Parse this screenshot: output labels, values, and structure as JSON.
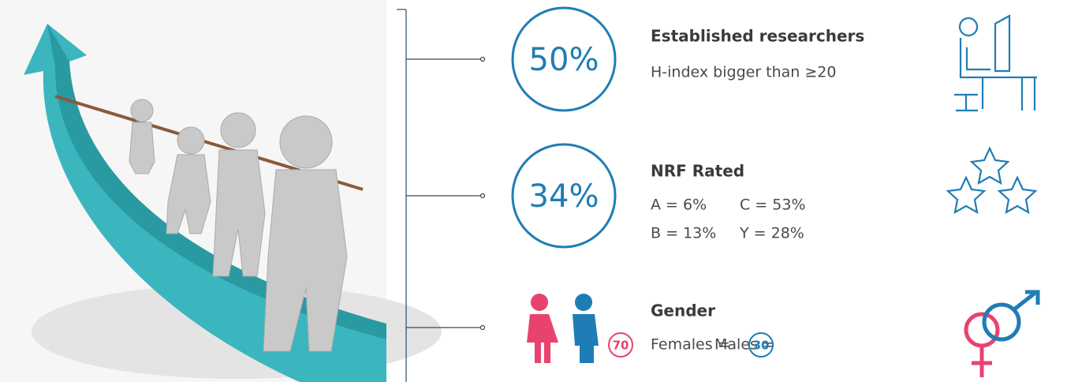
{
  "stats": [
    {
      "value": "50%",
      "title": "Established researchers",
      "line": "H-index bigger than ≥20"
    },
    {
      "value": "34%",
      "title": "NRF Rated",
      "grades": [
        "A = 6%",
        "C = 53%",
        "B = 13%",
        "Y = 28%"
      ]
    },
    {
      "title": "Gender",
      "females_label": "Females =",
      "females": "70",
      "males_label": "Males =",
      "males": "30"
    }
  ]
}
